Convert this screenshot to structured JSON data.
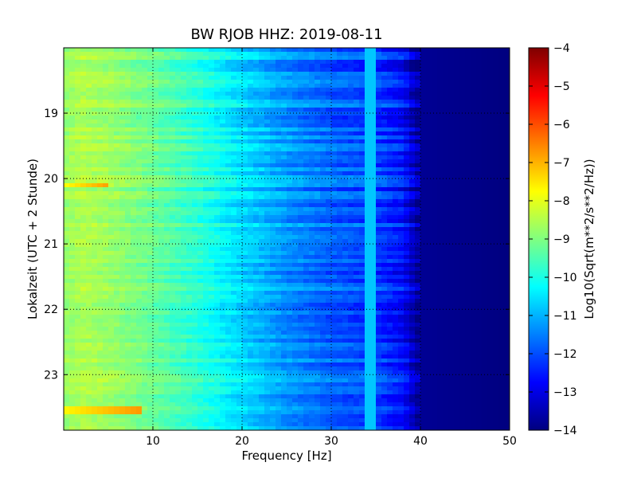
{
  "chart_data": {
    "type": "heatmap",
    "title": "BW RJOB HHZ: 2019-08-11",
    "xlabel": "Frequency [Hz]",
    "ylabel": "Lokalzeit (UTC + 2 Stunde)",
    "colorbar_label": "Log10(Sqrt(m**2/s**2/Hz))",
    "colormap": "jet",
    "xlim": [
      0,
      50
    ],
    "ylim": [
      18.0,
      23.85
    ],
    "y_inverted": true,
    "x_ticks": [
      10,
      20,
      30,
      40,
      50
    ],
    "y_ticks": [
      19,
      20,
      21,
      22,
      23
    ],
    "color_range": [
      -14,
      -4
    ],
    "color_ticks": [
      -4,
      -5,
      -6,
      -7,
      -8,
      -9,
      -10,
      -11,
      -12,
      -13,
      -14
    ],
    "grid": true,
    "frequency_profile": [
      {
        "f": 0,
        "v": -8.8
      },
      {
        "f": 2,
        "v": -8.5
      },
      {
        "f": 5,
        "v": -8.7
      },
      {
        "f": 10,
        "v": -9.2
      },
      {
        "f": 15,
        "v": -9.8
      },
      {
        "f": 20,
        "v": -10.6
      },
      {
        "f": 25,
        "v": -11.3
      },
      {
        "f": 30,
        "v": -11.8
      },
      {
        "f": 35,
        "v": -12.1
      },
      {
        "f": 38,
        "v": -12.6
      },
      {
        "f": 40,
        "v": -13.8
      },
      {
        "f": 50,
        "v": -14.0
      }
    ],
    "features": [
      {
        "label": "line near 34 Hz",
        "frequency_hz": 34.3,
        "value": -10.8
      },
      {
        "label": "strong low-frequency event",
        "time": 20.1,
        "frequency_range": [
          0,
          5
        ],
        "value": -7.8
      },
      {
        "label": "strong low-frequency event",
        "time": 23.55,
        "frequency_range": [
          0,
          9
        ],
        "value": -7.7
      }
    ]
  }
}
